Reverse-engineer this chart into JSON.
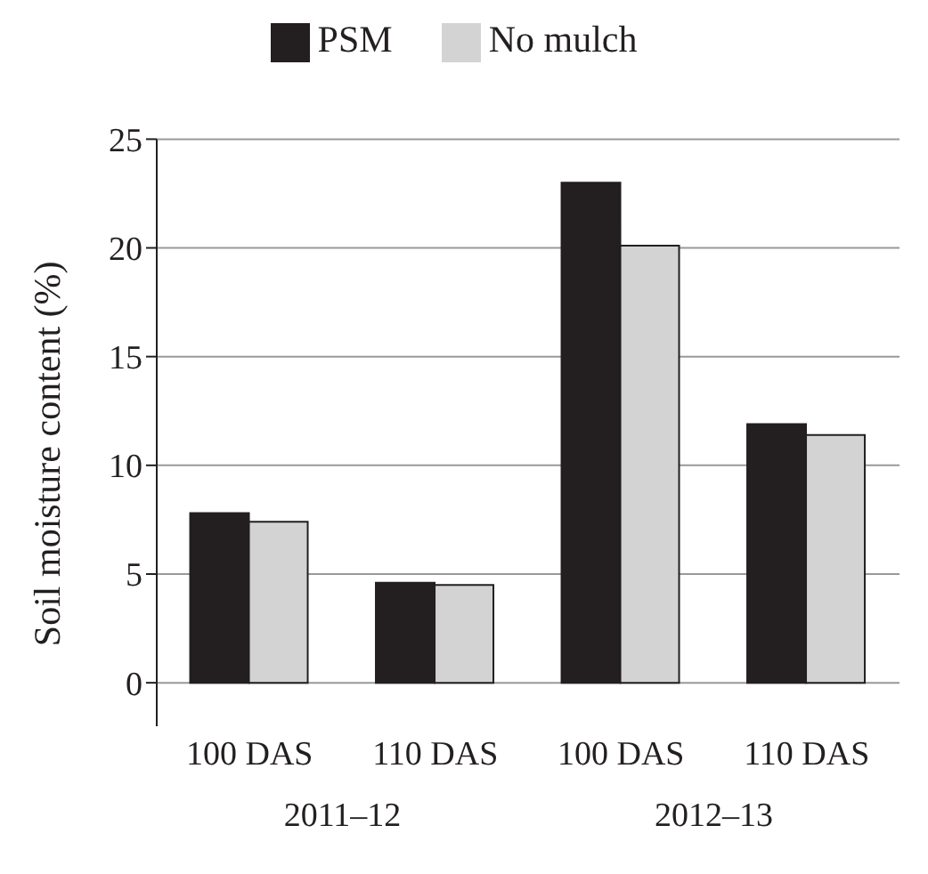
{
  "chart_data": {
    "type": "bar",
    "ylabel": "Soil moisture content (%)",
    "categories": [
      "100 DAS",
      "110 DAS",
      "100 DAS",
      "110 DAS"
    ],
    "series": [
      {
        "name": "PSM",
        "color": "#231f20",
        "values": [
          7.8,
          4.6,
          23.0,
          11.9
        ]
      },
      {
        "name": "No mulch",
        "color": "#d3d3d3",
        "values": [
          7.4,
          4.5,
          20.1,
          11.4
        ]
      }
    ],
    "ylim": [
      -2,
      25
    ],
    "yticks": [
      0,
      5,
      10,
      15,
      20,
      25
    ],
    "grid": "y",
    "legend": "top",
    "annotations": [
      "2011–12",
      "2012–13"
    ]
  }
}
